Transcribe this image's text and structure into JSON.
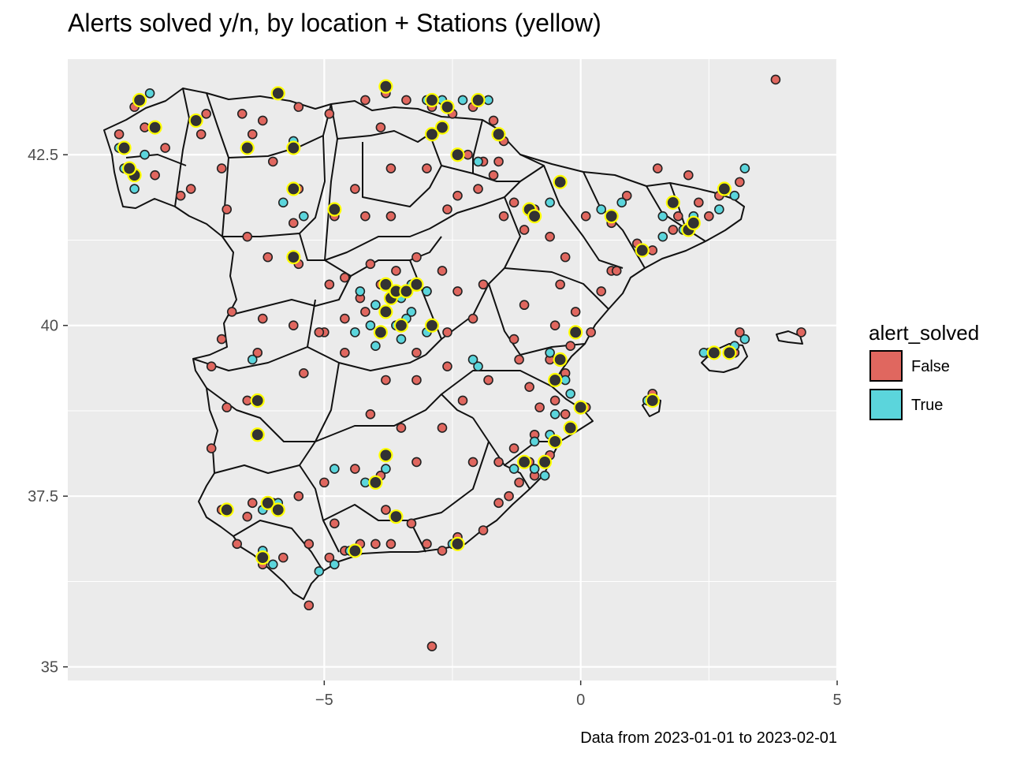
{
  "chart_data": {
    "type": "scatter",
    "title": "Alerts solved y/n, by location + Stations (yellow)",
    "caption": "Data from 2023-01-01 to 2023-02-01",
    "xlabel": "",
    "ylabel": "",
    "xlim": [
      -10,
      5
    ],
    "ylim": [
      34.8,
      43.9
    ],
    "x_ticks": [
      -5,
      0,
      5
    ],
    "x_tick_labels": [
      "−5",
      "0",
      "5"
    ],
    "y_ticks": [
      35,
      37.5,
      40,
      42.5
    ],
    "y_tick_labels": [
      "35",
      "37.5",
      "40",
      "42.5"
    ],
    "grid": true,
    "legend": {
      "title": "alert_solved",
      "placement": "right",
      "entries": [
        {
          "label": "False",
          "color": "#e0675f"
        },
        {
          "label": "True",
          "color": "#5bd5dc"
        }
      ]
    },
    "colors": {
      "false": "#e0675f",
      "true": "#5bd5dc",
      "station_fill": "#333333",
      "station_outline": "#ffff00",
      "panel": "#ebebeb"
    },
    "series": [
      {
        "name": "False",
        "points": [
          [
            3.8,
            43.6
          ],
          [
            -9.0,
            42.8
          ],
          [
            -8.7,
            43.2
          ],
          [
            -8.1,
            42.6
          ],
          [
            -7.4,
            42.8
          ],
          [
            -7.3,
            43.1
          ],
          [
            -6.6,
            43.1
          ],
          [
            -6.4,
            42.8
          ],
          [
            -5.9,
            43.4
          ],
          [
            -5.5,
            43.2
          ],
          [
            -4.2,
            43.3
          ],
          [
            -3.8,
            43.4
          ],
          [
            -3.4,
            43.3
          ],
          [
            -2.9,
            43.2
          ],
          [
            -2.5,
            43.1
          ],
          [
            -2.1,
            43.2
          ],
          [
            -1.7,
            43.0
          ],
          [
            -1.5,
            42.7
          ],
          [
            -2.2,
            42.5
          ],
          [
            -1.9,
            42.4
          ],
          [
            -1.7,
            42.2
          ],
          [
            -2.0,
            42.0
          ],
          [
            -1.3,
            41.8
          ],
          [
            -2.4,
            41.9
          ],
          [
            -3.7,
            42.3
          ],
          [
            -4.4,
            42.0
          ],
          [
            -5.5,
            42.0
          ],
          [
            -6.0,
            42.4
          ],
          [
            -7.8,
            41.9
          ],
          [
            -8.3,
            42.2
          ],
          [
            -6.9,
            41.7
          ],
          [
            -6.5,
            41.3
          ],
          [
            -5.6,
            41.5
          ],
          [
            -4.8,
            41.6
          ],
          [
            -3.7,
            41.6
          ],
          [
            -2.6,
            41.7
          ],
          [
            -1.5,
            41.6
          ],
          [
            -0.9,
            41.7
          ],
          [
            0.1,
            41.6
          ],
          [
            0.6,
            41.5
          ],
          [
            1.1,
            41.2
          ],
          [
            1.8,
            41.4
          ],
          [
            2.3,
            41.8
          ],
          [
            2.7,
            41.9
          ],
          [
            3.1,
            42.1
          ],
          [
            2.1,
            42.2
          ],
          [
            1.5,
            42.3
          ],
          [
            0.9,
            41.9
          ],
          [
            -0.3,
            41.0
          ],
          [
            0.6,
            40.8
          ],
          [
            0.4,
            40.5
          ],
          [
            -0.1,
            40.2
          ],
          [
            -1.1,
            40.3
          ],
          [
            -1.9,
            40.6
          ],
          [
            -2.7,
            40.8
          ],
          [
            -3.2,
            41.0
          ],
          [
            -3.6,
            40.8
          ],
          [
            -4.1,
            40.9
          ],
          [
            -4.6,
            40.7
          ],
          [
            -4.3,
            40.4
          ],
          [
            -4.6,
            40.1
          ],
          [
            -5.0,
            39.9
          ],
          [
            -5.6,
            40.0
          ],
          [
            -6.2,
            40.1
          ],
          [
            -6.8,
            40.2
          ],
          [
            -7.0,
            39.8
          ],
          [
            -6.3,
            39.6
          ],
          [
            -5.4,
            39.3
          ],
          [
            -4.6,
            39.6
          ],
          [
            -3.8,
            39.2
          ],
          [
            -3.2,
            39.2
          ],
          [
            -2.6,
            39.4
          ],
          [
            -1.8,
            39.2
          ],
          [
            -1.2,
            39.5
          ],
          [
            -1.0,
            39.1
          ],
          [
            -0.8,
            38.8
          ],
          [
            -0.3,
            38.7
          ],
          [
            0.1,
            38.8
          ],
          [
            -0.9,
            38.4
          ],
          [
            -1.3,
            38.2
          ],
          [
            -1.6,
            38.0
          ],
          [
            -2.1,
            38.0
          ],
          [
            -2.7,
            38.5
          ],
          [
            -3.2,
            38.0
          ],
          [
            -3.9,
            37.8
          ],
          [
            -4.4,
            37.9
          ],
          [
            -5.0,
            37.7
          ],
          [
            -5.5,
            37.5
          ],
          [
            -6.0,
            37.4
          ],
          [
            -6.5,
            37.2
          ],
          [
            -7.0,
            37.3
          ],
          [
            -6.7,
            36.8
          ],
          [
            -6.2,
            36.5
          ],
          [
            -5.8,
            36.6
          ],
          [
            -5.3,
            36.8
          ],
          [
            -4.9,
            36.6
          ],
          [
            -4.3,
            36.8
          ],
          [
            -3.7,
            36.8
          ],
          [
            -3.0,
            36.8
          ],
          [
            -2.4,
            36.9
          ],
          [
            -1.9,
            37.0
          ],
          [
            -1.6,
            37.4
          ],
          [
            -1.2,
            37.7
          ],
          [
            -0.9,
            37.8
          ],
          [
            -2.9,
            35.3
          ],
          [
            -5.3,
            35.9
          ],
          [
            4.3,
            39.9
          ],
          [
            3.1,
            39.9
          ],
          [
            1.4,
            39.0
          ],
          [
            -4.6,
            36.7
          ],
          [
            -3.8,
            37.3
          ],
          [
            -3.3,
            37.1
          ],
          [
            -4.1,
            38.7
          ],
          [
            -3.5,
            38.5
          ],
          [
            -2.3,
            38.9
          ],
          [
            -3.2,
            39.6
          ],
          [
            -2.1,
            40.1
          ],
          [
            -2.6,
            39.9
          ],
          [
            -4.2,
            40.2
          ],
          [
            -3.9,
            40.6
          ],
          [
            -3.0,
            40.5
          ],
          [
            -2.4,
            40.5
          ],
          [
            -1.3,
            39.8
          ],
          [
            -0.5,
            40.0
          ],
          [
            0.2,
            39.9
          ],
          [
            -0.6,
            39.5
          ],
          [
            -0.3,
            39.3
          ],
          [
            -0.2,
            39.7
          ],
          [
            -0.5,
            38.9
          ],
          [
            -0.6,
            38.1
          ],
          [
            -1.0,
            38.0
          ],
          [
            -1.4,
            37.5
          ],
          [
            -2.7,
            36.7
          ],
          [
            -4.0,
            36.8
          ],
          [
            -4.8,
            37.1
          ],
          [
            -6.4,
            37.4
          ],
          [
            -7.2,
            38.2
          ],
          [
            -6.9,
            38.8
          ],
          [
            -6.5,
            38.9
          ],
          [
            -7.2,
            39.4
          ],
          [
            -5.1,
            39.9
          ],
          [
            -4.9,
            40.6
          ],
          [
            -5.5,
            40.9
          ],
          [
            -6.1,
            41.0
          ],
          [
            -4.2,
            41.6
          ],
          [
            -3.0,
            42.3
          ],
          [
            -1.6,
            42.4
          ],
          [
            -3.9,
            42.9
          ],
          [
            -4.9,
            43.1
          ],
          [
            -6.2,
            43.0
          ],
          [
            -7.0,
            42.3
          ],
          [
            -8.5,
            42.9
          ],
          [
            -7.6,
            42.0
          ],
          [
            2.5,
            41.6
          ],
          [
            1.9,
            41.6
          ],
          [
            1.4,
            41.1
          ],
          [
            0.7,
            40.8
          ],
          [
            -0.4,
            40.6
          ],
          [
            -0.6,
            41.3
          ],
          [
            -1.1,
            41.4
          ],
          [
            3.0,
            39.6
          ],
          [
            2.5,
            39.6
          ]
        ]
      },
      {
        "name": "True",
        "points": [
          [
            -9.0,
            42.6
          ],
          [
            -8.9,
            42.3
          ],
          [
            -8.7,
            42.0
          ],
          [
            -8.5,
            42.5
          ],
          [
            -8.3,
            42.9
          ],
          [
            -8.6,
            43.3
          ],
          [
            -8.4,
            43.4
          ],
          [
            -5.6,
            42.7
          ],
          [
            -5.8,
            41.8
          ],
          [
            -5.4,
            41.6
          ],
          [
            -3.0,
            43.3
          ],
          [
            -2.7,
            43.3
          ],
          [
            -2.3,
            43.3
          ],
          [
            -1.8,
            43.3
          ],
          [
            -2.0,
            42.4
          ],
          [
            -0.6,
            41.8
          ],
          [
            0.4,
            41.7
          ],
          [
            0.8,
            41.8
          ],
          [
            2.2,
            41.6
          ],
          [
            2.7,
            41.7
          ],
          [
            3.0,
            41.9
          ],
          [
            3.2,
            42.3
          ],
          [
            2.0,
            41.4
          ],
          [
            1.6,
            41.3
          ],
          [
            -3.8,
            40.2
          ],
          [
            -3.5,
            40.4
          ],
          [
            -3.3,
            40.2
          ],
          [
            -3.6,
            40.0
          ],
          [
            -4.1,
            40.0
          ],
          [
            -4.4,
            39.9
          ],
          [
            -4.0,
            39.7
          ],
          [
            -3.5,
            39.8
          ],
          [
            -3.0,
            39.9
          ],
          [
            -3.3,
            40.6
          ],
          [
            -3.8,
            40.6
          ],
          [
            -2.0,
            39.4
          ],
          [
            -2.1,
            39.5
          ],
          [
            -0.6,
            39.6
          ],
          [
            -0.4,
            39.5
          ],
          [
            -0.3,
            39.2
          ],
          [
            -0.2,
            39.0
          ],
          [
            -0.5,
            38.7
          ],
          [
            -0.6,
            38.4
          ],
          [
            -0.9,
            38.3
          ],
          [
            -0.9,
            37.9
          ],
          [
            -1.3,
            37.9
          ],
          [
            -0.7,
            37.8
          ],
          [
            -3.8,
            37.9
          ],
          [
            -4.2,
            37.7
          ],
          [
            -4.8,
            37.9
          ],
          [
            -5.9,
            37.4
          ],
          [
            -6.2,
            37.3
          ],
          [
            -6.0,
            36.5
          ],
          [
            -6.2,
            36.7
          ],
          [
            -4.8,
            36.5
          ],
          [
            -4.5,
            36.7
          ],
          [
            -5.1,
            36.4
          ],
          [
            -2.5,
            36.8
          ],
          [
            -6.4,
            39.5
          ],
          [
            -3.0,
            40.5
          ],
          [
            -4.3,
            40.5
          ],
          [
            -4.0,
            40.3
          ],
          [
            -3.4,
            40.1
          ],
          [
            1.3,
            38.9
          ],
          [
            2.4,
            39.6
          ],
          [
            3.0,
            39.7
          ],
          [
            3.2,
            39.8
          ],
          [
            1.6,
            41.6
          ]
        ]
      },
      {
        "name": "Stations",
        "points": [
          [
            -8.6,
            43.3
          ],
          [
            -8.3,
            42.9
          ],
          [
            -8.9,
            42.6
          ],
          [
            -8.7,
            42.2
          ],
          [
            -8.8,
            42.3
          ],
          [
            -7.5,
            43.0
          ],
          [
            -6.5,
            42.6
          ],
          [
            -5.9,
            43.4
          ],
          [
            -5.6,
            42.6
          ],
          [
            -5.6,
            42.0
          ],
          [
            -3.8,
            43.5
          ],
          [
            -2.9,
            43.3
          ],
          [
            -2.6,
            43.2
          ],
          [
            -2.7,
            42.9
          ],
          [
            -2.9,
            42.8
          ],
          [
            -2.4,
            42.5
          ],
          [
            -2.0,
            43.3
          ],
          [
            -1.6,
            42.8
          ],
          [
            -0.4,
            42.1
          ],
          [
            -4.8,
            41.7
          ],
          [
            -1.0,
            41.7
          ],
          [
            -0.9,
            41.6
          ],
          [
            0.6,
            41.6
          ],
          [
            1.8,
            41.8
          ],
          [
            2.1,
            41.4
          ],
          [
            2.2,
            41.5
          ],
          [
            1.2,
            41.1
          ],
          [
            2.8,
            42.0
          ],
          [
            -5.6,
            41.0
          ],
          [
            -3.8,
            40.6
          ],
          [
            -3.7,
            40.4
          ],
          [
            -3.6,
            40.5
          ],
          [
            -3.4,
            40.5
          ],
          [
            -3.2,
            40.6
          ],
          [
            -3.8,
            40.2
          ],
          [
            -3.5,
            40.0
          ],
          [
            -3.9,
            39.9
          ],
          [
            -2.9,
            40.0
          ],
          [
            -0.1,
            39.9
          ],
          [
            -0.4,
            39.5
          ],
          [
            -0.5,
            39.2
          ],
          [
            0.0,
            38.8
          ],
          [
            -0.2,
            38.5
          ],
          [
            -0.5,
            38.3
          ],
          [
            -1.1,
            38.0
          ],
          [
            -0.7,
            38.0
          ],
          [
            -3.8,
            38.1
          ],
          [
            -4.0,
            37.7
          ],
          [
            -3.6,
            37.2
          ],
          [
            -6.9,
            37.3
          ],
          [
            -6.1,
            37.4
          ],
          [
            -5.9,
            37.3
          ],
          [
            -6.2,
            36.6
          ],
          [
            -4.4,
            36.7
          ],
          [
            -2.4,
            36.8
          ],
          [
            -6.3,
            38.9
          ],
          [
            -6.3,
            38.4
          ],
          [
            2.6,
            39.6
          ],
          [
            2.9,
            39.6
          ],
          [
            1.4,
            38.9
          ]
        ]
      }
    ]
  }
}
